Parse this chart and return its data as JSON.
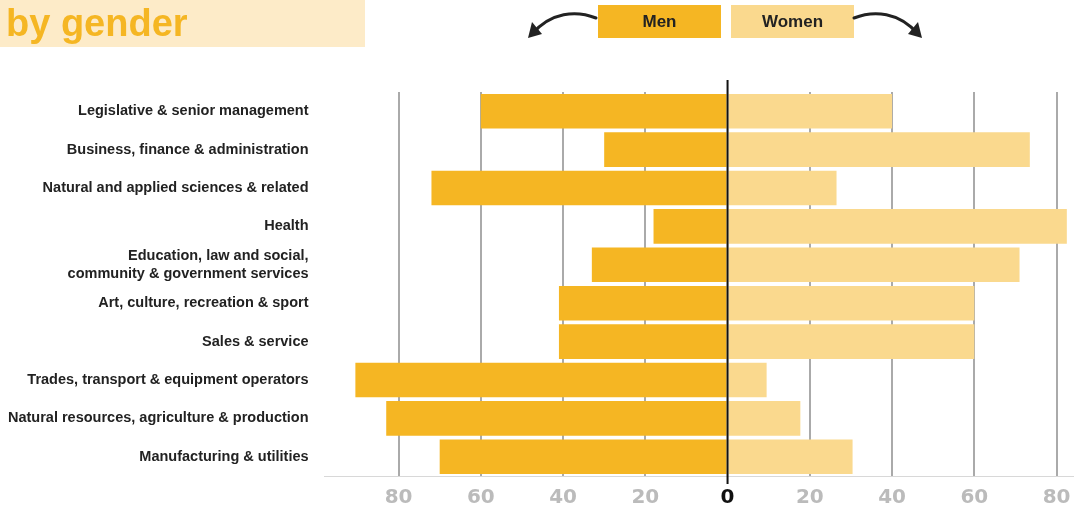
{
  "chart_data": {
    "type": "bar",
    "orientation": "horizontal",
    "stacked": true,
    "title": "by gender",
    "legend": "top",
    "grid": "x",
    "categories": [
      "Legislative & senior management",
      "Business, finance & administration",
      "Natural and applied sciences & related",
      "Health",
      "Education, law and social, community & government services",
      "Art, culture, recreation & sport",
      "Sales & service",
      "Trades, transport & equipment operators",
      "Natural resources, agriculture & production",
      "Manufacturing & utilities"
    ],
    "series": [
      {
        "name": "Men",
        "color": "#f5b623",
        "values": [
          -60,
          -30,
          -72,
          -18,
          -33,
          -41,
          -41,
          -90.5,
          -83,
          -70
        ]
      },
      {
        "name": "Women",
        "color": "#fad98e",
        "values": [
          40,
          73.5,
          26.5,
          82.5,
          71,
          60,
          60,
          9.5,
          17.7,
          30.4
        ]
      }
    ],
    "xlim": [
      -98,
      84
    ],
    "xticks": [
      {
        "value": -80,
        "label": "80"
      },
      {
        "value": -60,
        "label": "60"
      },
      {
        "value": -40,
        "label": "40"
      },
      {
        "value": -20,
        "label": "20"
      },
      0,
      20,
      40,
      60,
      80
    ]
  }
}
